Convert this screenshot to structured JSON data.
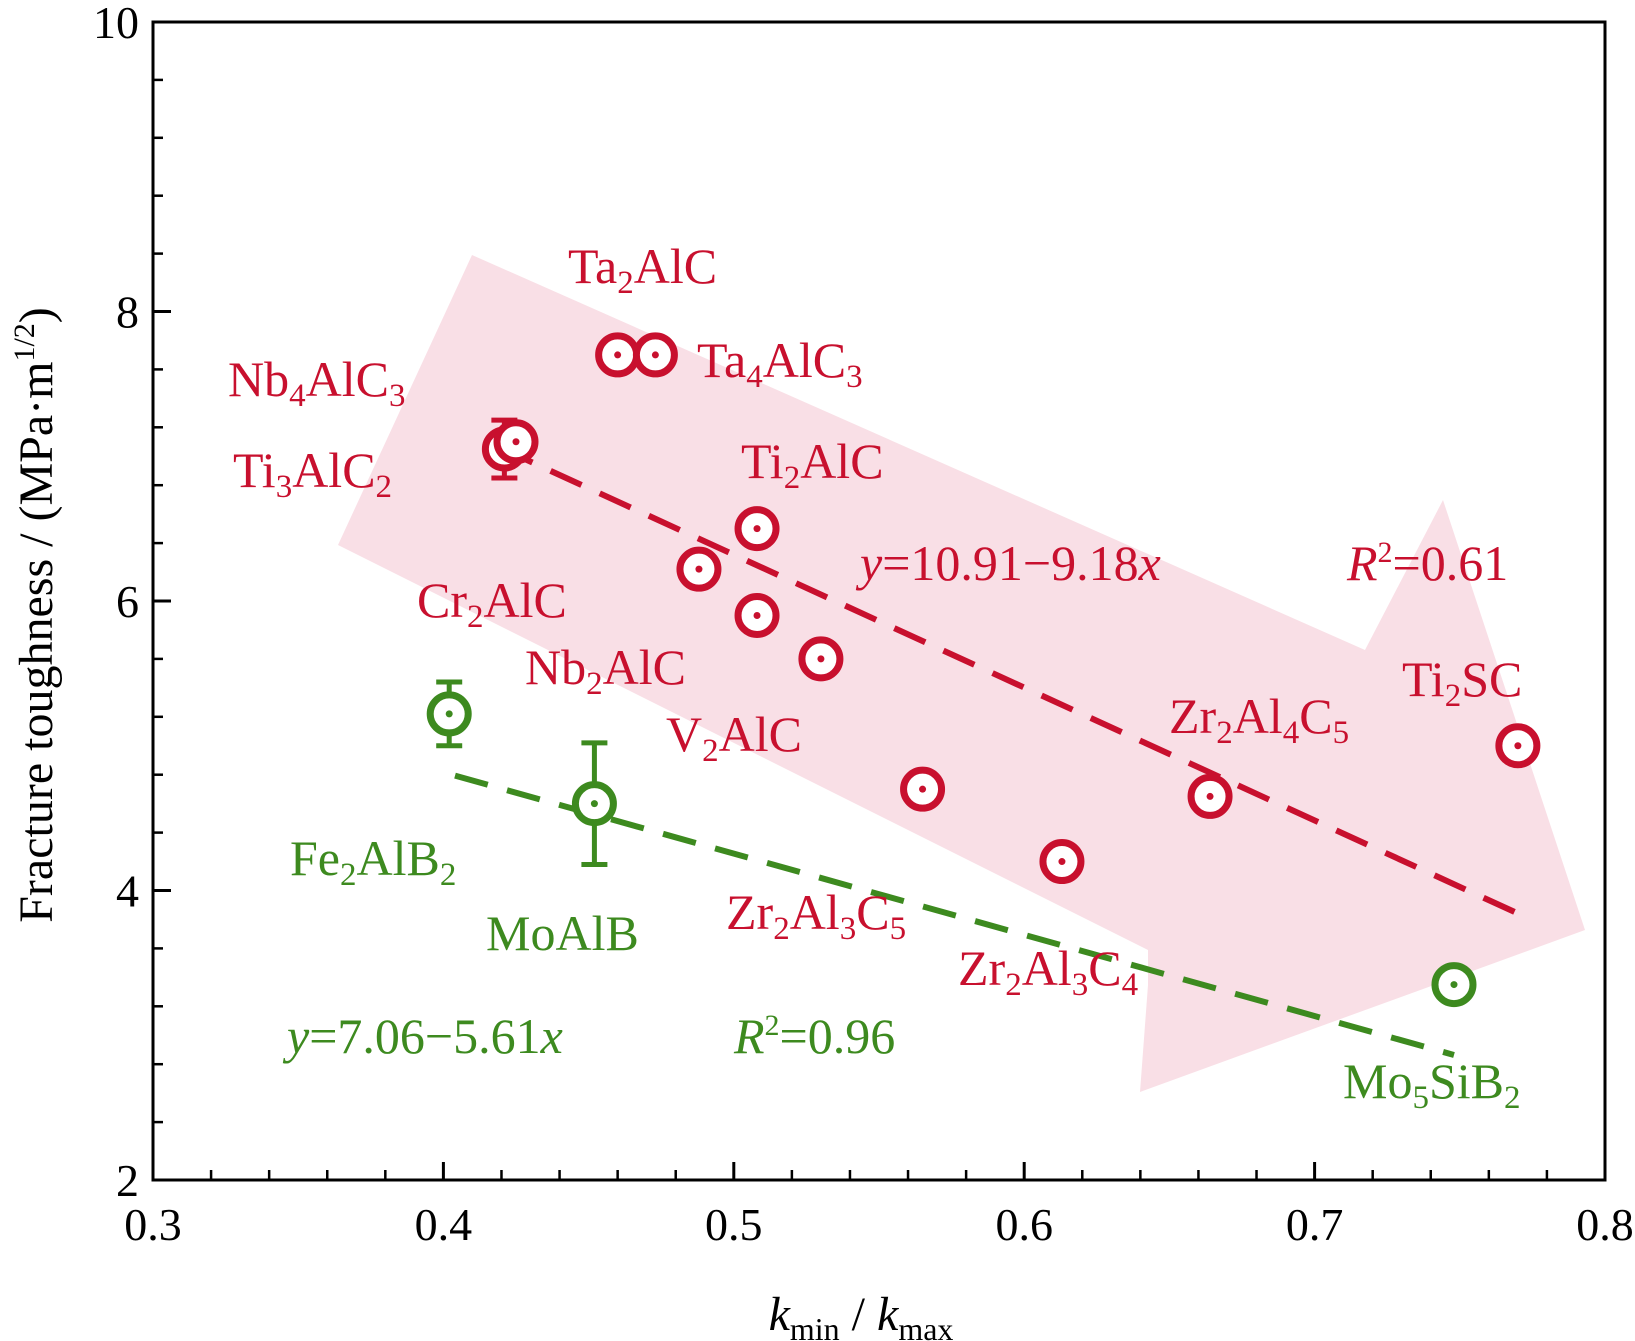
{
  "chart_data": {
    "type": "scatter",
    "xlabel": {
      "k1": "k",
      "s1": "min",
      "mid": " / ",
      "k2": "k",
      "s2": "max"
    },
    "ylabel": {
      "main": "Fracture toughness / (MPa·m",
      "sup": "1/2",
      "end": ")"
    },
    "xlim": [
      0.3,
      0.8
    ],
    "ylim": [
      2,
      10
    ],
    "xticks": [
      "0.3",
      "0.4",
      "0.5",
      "0.6",
      "0.7",
      "0.8"
    ],
    "yticks": [
      "2",
      "4",
      "6",
      "8",
      "10"
    ],
    "grid": false,
    "colors": {
      "red": "#c8102e",
      "green": "#3d8a1f",
      "arrow": "#f9dfe6"
    },
    "series": [
      {
        "group": "red",
        "fit": {
          "intercept": 10.91,
          "slope": -9.18,
          "x_range": [
            0.42,
            0.77
          ]
        },
        "equation": {
          "y": "y",
          "rest": "=10.91−9.18",
          "x": "x"
        },
        "r2": {
          "R": "R",
          "two": "2",
          "rest": "=0.61"
        },
        "points": [
          {
            "x": 0.46,
            "y": 7.7,
            "label": [
              {
                "t": "Ta"
              },
              {
                "t": "2",
                "s": 1
              },
              {
                "t": "AlC"
              }
            ]
          },
          {
            "x": 0.473,
            "y": 7.7,
            "label": [
              {
                "t": "Ta"
              },
              {
                "t": "4",
                "s": 1
              },
              {
                "t": "AlC"
              },
              {
                "t": "3",
                "s": 1
              }
            ]
          },
          {
            "x": 0.421,
            "y": 7.05,
            "yerr": 0.2,
            "label": [
              {
                "t": "Nb"
              },
              {
                "t": "4",
                "s": 1
              },
              {
                "t": "AlC"
              },
              {
                "t": "3",
                "s": 1
              }
            ]
          },
          {
            "x": 0.425,
            "y": 7.1,
            "label": [
              {
                "t": "Ti"
              },
              {
                "t": "3",
                "s": 1
              },
              {
                "t": "AlC"
              },
              {
                "t": "2",
                "s": 1
              }
            ]
          },
          {
            "x": 0.508,
            "y": 6.5,
            "label": [
              {
                "t": "Ti"
              },
              {
                "t": "2",
                "s": 1
              },
              {
                "t": "AlC"
              }
            ]
          },
          {
            "x": 0.488,
            "y": 6.22,
            "label": [
              {
                "t": "Cr"
              },
              {
                "t": "2",
                "s": 1
              },
              {
                "t": "AlC"
              }
            ]
          },
          {
            "x": 0.508,
            "y": 5.9,
            "label": [
              {
                "t": "Nb"
              },
              {
                "t": "2",
                "s": 1
              },
              {
                "t": "AlC"
              }
            ]
          },
          {
            "x": 0.53,
            "y": 5.6,
            "label": [
              {
                "t": "V"
              },
              {
                "t": "2",
                "s": 1
              },
              {
                "t": "AlC"
              }
            ]
          },
          {
            "x": 0.565,
            "y": 4.7,
            "label": [
              {
                "t": "Zr"
              },
              {
                "t": "2",
                "s": 1
              },
              {
                "t": "Al"
              },
              {
                "t": "3",
                "s": 1
              },
              {
                "t": "C"
              },
              {
                "t": "5",
                "s": 1
              }
            ]
          },
          {
            "x": 0.613,
            "y": 4.2,
            "label": [
              {
                "t": "Zr"
              },
              {
                "t": "2",
                "s": 1
              },
              {
                "t": "Al"
              },
              {
                "t": "3",
                "s": 1
              },
              {
                "t": "C"
              },
              {
                "t": "4",
                "s": 1
              }
            ]
          },
          {
            "x": 0.664,
            "y": 4.65,
            "label": [
              {
                "t": "Zr"
              },
              {
                "t": "2",
                "s": 1
              },
              {
                "t": "Al"
              },
              {
                "t": "4",
                "s": 1
              },
              {
                "t": "C"
              },
              {
                "t": "5",
                "s": 1
              }
            ]
          },
          {
            "x": 0.77,
            "y": 5.0,
            "label": [
              {
                "t": "Ti"
              },
              {
                "t": "2",
                "s": 1
              },
              {
                "t": "SC"
              }
            ]
          }
        ]
      },
      {
        "group": "green",
        "fit": {
          "intercept": 7.06,
          "slope": -5.61,
          "x_range": [
            0.404,
            0.748
          ]
        },
        "equation": {
          "y": "y",
          "rest": "=7.06−5.61",
          "x": "x"
        },
        "r2": {
          "R": "R",
          "two": "2",
          "rest": "=0.96"
        },
        "points": [
          {
            "x": 0.402,
            "y": 5.22,
            "yerr": 0.22,
            "label": [
              {
                "t": "Fe"
              },
              {
                "t": "2",
                "s": 1
              },
              {
                "t": "AlB"
              },
              {
                "t": "2",
                "s": 1
              }
            ]
          },
          {
            "x": 0.452,
            "y": 4.6,
            "yerr": 0.42,
            "label": [
              {
                "t": "MoAlB"
              }
            ]
          },
          {
            "x": 0.748,
            "y": 3.35,
            "label": [
              {
                "t": "Mo"
              },
              {
                "t": "5",
                "s": 1
              },
              {
                "t": "SiB"
              },
              {
                "t": "2",
                "s": 1
              }
            ]
          }
        ]
      }
    ]
  }
}
